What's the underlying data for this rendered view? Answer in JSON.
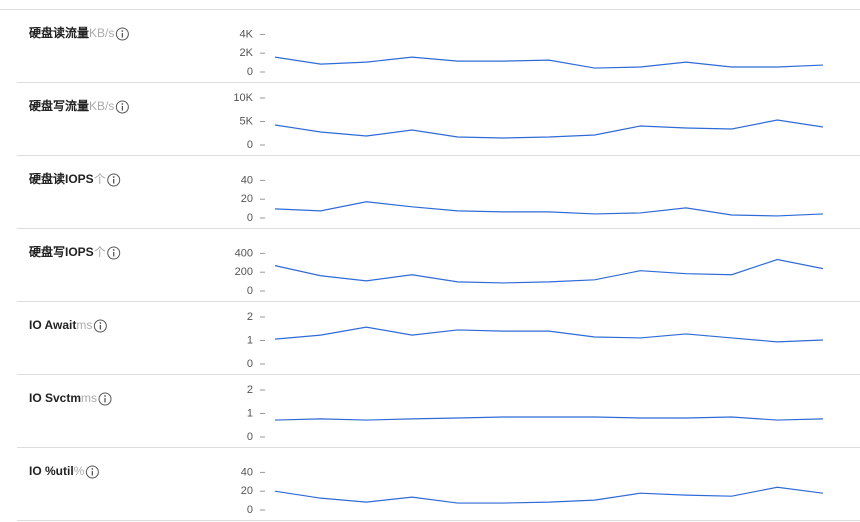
{
  "chart_data": [
    {
      "type": "line",
      "title": "硬盘读流量",
      "unit": "KB/s",
      "color": "#2f6bd6",
      "ylim": [
        0,
        5000
      ],
      "yticks": [
        0,
        {
          "value": 2000,
          "label": "2K"
        },
        {
          "value": 4000,
          "label": "4K"
        }
      ],
      "values": [
        1580,
        840,
        1050,
        1580,
        1160,
        1160,
        1260,
        420,
        530,
        1050,
        530,
        530,
        740
      ]
    },
    {
      "type": "line",
      "title": "硬盘写流量",
      "unit": "KB/s",
      "color": "#2f6bd6",
      "ylim": [
        0,
        10000
      ],
      "yticks": [
        0,
        {
          "value": 5000,
          "label": "5K"
        },
        {
          "value": 10000,
          "label": "10K"
        }
      ],
      "values": [
        4260,
        2770,
        1910,
        3190,
        1700,
        1490,
        1700,
        2130,
        4040,
        3620,
        3400,
        5320,
        3830
      ]
    },
    {
      "type": "line",
      "title": "硬盘读IOPS",
      "unit": "个",
      "color": "#2f6bd6",
      "ylim": [
        0,
        50
      ],
      "yticks": [
        0,
        20,
        40
      ],
      "values": [
        9.7,
        7.6,
        17.3,
        11.9,
        7.6,
        6.5,
        6.5,
        4.3,
        5.4,
        10.8,
        3.2,
        2.2,
        4.3
      ]
    },
    {
      "type": "line",
      "title": "硬盘写IOPS",
      "unit": "个",
      "color": "#2f6bd6",
      "ylim": [
        0,
        500
      ],
      "yticks": [
        0,
        200,
        400
      ],
      "values": [
        270,
        162,
        108,
        173,
        97,
        86,
        97,
        119,
        216,
        184,
        173,
        335,
        238
      ]
    },
    {
      "type": "line",
      "title": "IO Await",
      "unit": "ms",
      "color": "#2f6bd6",
      "ylim": [
        0,
        2
      ],
      "yticks": [
        0,
        1,
        2
      ],
      "values": [
        1.06,
        1.23,
        1.57,
        1.23,
        1.45,
        1.4,
        1.4,
        1.15,
        1.11,
        1.28,
        1.11,
        0.94,
        1.02
      ]
    },
    {
      "type": "line",
      "title": "IO Svctm",
      "unit": "ms",
      "color": "#2f6bd6",
      "ylim": [
        0,
        2
      ],
      "yticks": [
        0,
        1,
        2
      ],
      "values": [
        0.72,
        0.77,
        0.72,
        0.77,
        0.81,
        0.85,
        0.85,
        0.85,
        0.81,
        0.81,
        0.85,
        0.72,
        0.77
      ]
    },
    {
      "type": "line",
      "title": "IO %util",
      "unit": "%",
      "color": "#2f6bd6",
      "ylim": [
        0,
        50
      ],
      "yticks": [
        0,
        20,
        40
      ],
      "values": [
        20,
        12.6,
        8.4,
        13.7,
        7.4,
        7.4,
        8.4,
        10.5,
        17.9,
        15.8,
        14.7,
        24.2,
        17.9
      ]
    }
  ]
}
